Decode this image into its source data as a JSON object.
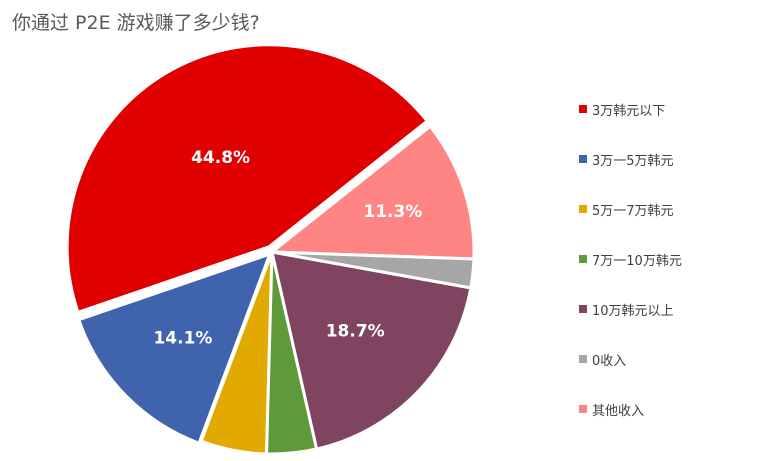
{
  "chart_data": {
    "type": "pie",
    "title": "你通过 P2E 游戏赚了多少钱?",
    "legend_position": "right",
    "slices": [
      {
        "label": "其他收入",
        "value": 11.3,
        "color": "#ff8585",
        "data_label": "11.3%"
      },
      {
        "label": "3万韩元以下",
        "value": 44.8,
        "color": "#e00000",
        "data_label": "44.8%"
      },
      {
        "label": "3万一5万韩元",
        "value": 14.1,
        "color": "#3f63ac",
        "data_label": "14.1%"
      },
      {
        "label": "5万一7万韩元",
        "value": 5.3,
        "color": "#e2aa00",
        "data_label": ""
      },
      {
        "label": "7万一10万韩元",
        "value": 4.0,
        "color": "#5f9a3a",
        "data_label": ""
      },
      {
        "label": "10万韩元以上",
        "value": 18.7,
        "color": "#7f4460",
        "data_label": "18.7%"
      },
      {
        "label": "0收入",
        "value": 2.3,
        "color": "#a6a6a6",
        "data_label": ""
      }
    ],
    "legend": [
      {
        "label": "3万韩元以下",
        "color": "#e00000"
      },
      {
        "label": "3万一5万韩元",
        "color": "#3f63ac"
      },
      {
        "label": "5万一7万韩元",
        "color": "#e2aa00"
      },
      {
        "label": "7万一10万韩元",
        "color": "#5f9a3a"
      },
      {
        "label": "10万韩元以上",
        "color": "#7f4460"
      },
      {
        "label": "0收入",
        "color": "#a6a6a6"
      },
      {
        "label": "其他收入",
        "color": "#ff8585"
      }
    ]
  }
}
